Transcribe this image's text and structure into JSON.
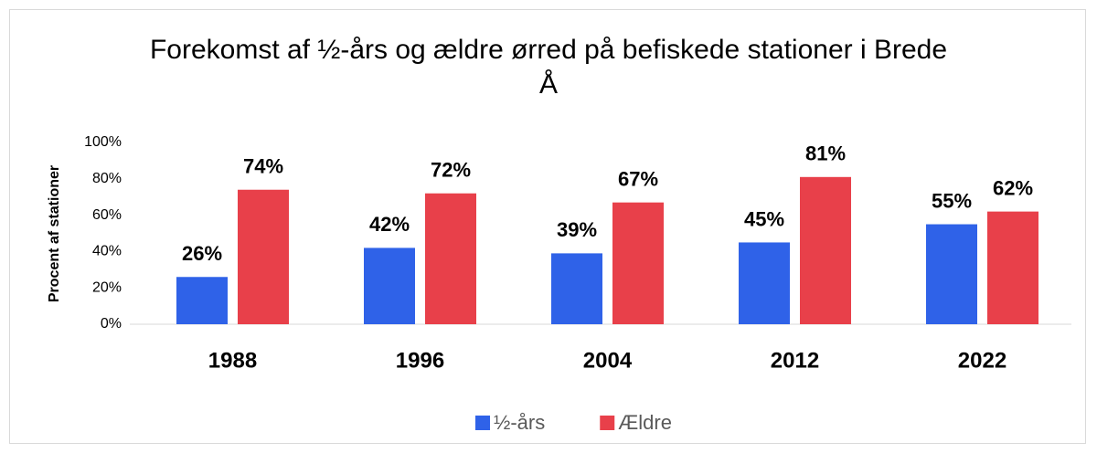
{
  "chart_data": {
    "type": "bar",
    "title": "Forekomst af ½-års og ældre ørred på befiskede stationer i Brede Å",
    "y_label": "Procent af stationer",
    "categories": [
      "1988",
      "1996",
      "2004",
      "2012",
      "2022"
    ],
    "series": [
      {
        "name": "½-års",
        "color": "#2f62e8",
        "values": [
          26,
          42,
          39,
          45,
          55
        ],
        "value_labels": [
          "26%",
          "42%",
          "39%",
          "45%",
          "55%"
        ]
      },
      {
        "name": "Ældre",
        "color": "#e8404a",
        "values": [
          74,
          72,
          67,
          81,
          62
        ],
        "value_labels": [
          "74%",
          "72%",
          "67%",
          "81%",
          "62%"
        ]
      }
    ],
    "ylim": [
      0,
      100
    ],
    "yticks": [
      {
        "value": 0,
        "label": "0%"
      },
      {
        "value": 20,
        "label": "20%"
      },
      {
        "value": 40,
        "label": "40%"
      },
      {
        "value": 60,
        "label": "60%"
      },
      {
        "value": 80,
        "label": "80%"
      },
      {
        "value": 100,
        "label": "100%"
      }
    ],
    "grid": false,
    "legend": "bottom"
  }
}
